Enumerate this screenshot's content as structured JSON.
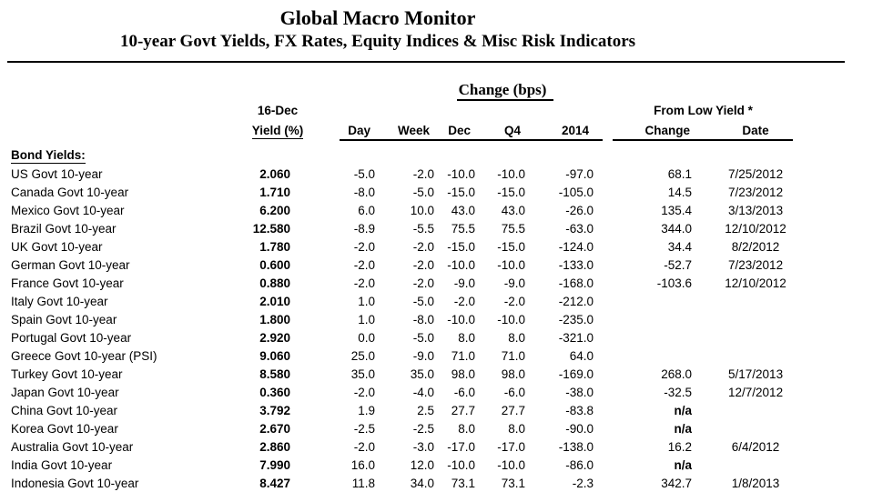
{
  "header": {
    "title": "Global Macro Monitor",
    "subtitle": "10-year Govt Yields, FX Rates, Equity Indices & Misc Risk Indicators"
  },
  "table": {
    "section_label": "Bond Yields:",
    "columns": {
      "change_group": "Change (bps)",
      "yield_top": "16-Dec",
      "yield_bottom": "Yield (%)",
      "day": "Day",
      "week": "Week",
      "dec": "Dec",
      "q4": "Q4",
      "year2014": "2014",
      "from_low_group": "From Low Yield *",
      "from_low_change": "Change",
      "from_low_date": "Date"
    },
    "rows": [
      {
        "name": "US Govt 10-year",
        "yield": "2.060",
        "day": "-5.0",
        "week": "-2.0",
        "dec": "-10.0",
        "q4": "-10.0",
        "y2014": "-97.0",
        "low_change": "68.1",
        "low_date": "7/25/2012"
      },
      {
        "name": "Canada Govt 10-year",
        "yield": "1.710",
        "day": "-8.0",
        "week": "-5.0",
        "dec": "-15.0",
        "q4": "-15.0",
        "y2014": "-105.0",
        "low_change": "14.5",
        "low_date": "7/23/2012"
      },
      {
        "name": "Mexico Govt 10-year",
        "yield": "6.200",
        "day": "6.0",
        "week": "10.0",
        "dec": "43.0",
        "q4": "43.0",
        "y2014": "-26.0",
        "low_change": "135.4",
        "low_date": "3/13/2013"
      },
      {
        "name": "Brazil Govt 10-year",
        "yield": "12.580",
        "day": "-8.9",
        "week": "-5.5",
        "dec": "75.5",
        "q4": "75.5",
        "y2014": "-63.0",
        "low_change": "344.0",
        "low_date": "12/10/2012"
      },
      {
        "name": "UK Govt 10-year",
        "yield": "1.780",
        "day": "-2.0",
        "week": "-2.0",
        "dec": "-15.0",
        "q4": "-15.0",
        "y2014": "-124.0",
        "low_change": "34.4",
        "low_date": "8/2/2012"
      },
      {
        "name": "German Govt 10-year",
        "yield": "0.600",
        "day": "-2.0",
        "week": "-2.0",
        "dec": "-10.0",
        "q4": "-10.0",
        "y2014": "-133.0",
        "low_change": "-52.7",
        "low_date": "7/23/2012"
      },
      {
        "name": "France Govt 10-year",
        "yield": "0.880",
        "day": "-2.0",
        "week": "-2.0",
        "dec": "-9.0",
        "q4": "-9.0",
        "y2014": "-168.0",
        "low_change": "-103.6",
        "low_date": "12/10/2012"
      },
      {
        "name": "Italy Govt 10-year",
        "yield": "2.010",
        "day": "1.0",
        "week": "-5.0",
        "dec": "-2.0",
        "q4": "-2.0",
        "y2014": "-212.0",
        "low_change": "",
        "low_date": ""
      },
      {
        "name": "Spain Govt 10-year",
        "yield": "1.800",
        "day": "1.0",
        "week": "-8.0",
        "dec": "-10.0",
        "q4": "-10.0",
        "y2014": "-235.0",
        "low_change": "",
        "low_date": ""
      },
      {
        "name": "Portugal Govt 10-year",
        "yield": "2.920",
        "day": "0.0",
        "week": "-5.0",
        "dec": "8.0",
        "q4": "8.0",
        "y2014": "-321.0",
        "low_change": "",
        "low_date": ""
      },
      {
        "name": "Greece Govt 10-year (PSI)",
        "yield": "9.060",
        "day": "25.0",
        "week": "-9.0",
        "dec": "71.0",
        "q4": "71.0",
        "y2014": "64.0",
        "low_change": "",
        "low_date": ""
      },
      {
        "name": "Turkey Govt 10-year",
        "yield": "8.580",
        "day": "35.0",
        "week": "35.0",
        "dec": "98.0",
        "q4": "98.0",
        "y2014": "-169.0",
        "low_change": "268.0",
        "low_date": "5/17/2013"
      },
      {
        "name": "Japan Govt 10-year",
        "yield": "0.360",
        "day": "-2.0",
        "week": "-4.0",
        "dec": "-6.0",
        "q4": "-6.0",
        "y2014": "-38.0",
        "low_change": "-32.5",
        "low_date": "12/7/2012"
      },
      {
        "name": "China Govt 10-year",
        "yield": "3.792",
        "day": "1.9",
        "week": "2.5",
        "dec": "27.7",
        "q4": "27.7",
        "y2014": "-83.8",
        "low_change": "n/a",
        "low_date": ""
      },
      {
        "name": "Korea Govt 10-year",
        "yield": "2.670",
        "day": "-2.5",
        "week": "-2.5",
        "dec": "8.0",
        "q4": "8.0",
        "y2014": "-90.0",
        "low_change": "n/a",
        "low_date": ""
      },
      {
        "name": "Australia Govt 10-year",
        "yield": "2.860",
        "day": "-2.0",
        "week": "-3.0",
        "dec": "-17.0",
        "q4": "-17.0",
        "y2014": "-138.0",
        "low_change": "16.2",
        "low_date": "6/4/2012"
      },
      {
        "name": "India Govt 10-year",
        "yield": "7.990",
        "day": "16.0",
        "week": "12.0",
        "dec": "-10.0",
        "q4": "-10.0",
        "y2014": "-86.0",
        "low_change": "n/a",
        "low_date": ""
      },
      {
        "name": "Indonesia Govt 10-year",
        "yield": "8.427",
        "day": "11.8",
        "week": "34.0",
        "dec": "73.1",
        "q4": "73.1",
        "y2014": "-2.3",
        "low_change": "342.7",
        "low_date": "1/8/2013"
      }
    ]
  }
}
